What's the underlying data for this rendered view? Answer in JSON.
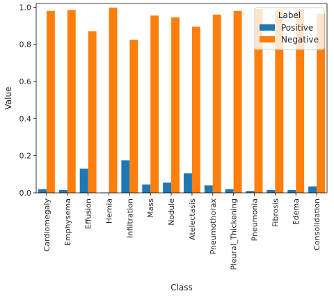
{
  "chart_data": {
    "type": "bar",
    "xlabel": "Class",
    "ylabel": "Value",
    "ylim": [
      0,
      1.02
    ],
    "yticks": [
      "0.0",
      "0.2",
      "0.4",
      "0.6",
      "0.8",
      "1.0"
    ],
    "grid": false,
    "legend": {
      "title": "Label",
      "placement": "top-right"
    },
    "categories": [
      "Cardiomegaly",
      "Emphysema",
      "Effusion",
      "Hernia",
      "Infiltration",
      "Mass",
      "Nodule",
      "Atelectasis",
      "Pneumothorax",
      "Pleural_Thickening",
      "Pneumonia",
      "Fibrosis",
      "Edema",
      "Consolidation"
    ],
    "series": [
      {
        "name": "Positive",
        "color": "#1f77b4",
        "values": [
          0.02,
          0.015,
          0.13,
          0.002,
          0.175,
          0.045,
          0.055,
          0.105,
          0.04,
          0.02,
          0.01,
          0.015,
          0.015,
          0.035
        ]
      },
      {
        "name": "Negative",
        "color": "#ff7f0e",
        "values": [
          0.98,
          0.985,
          0.87,
          0.998,
          0.825,
          0.955,
          0.945,
          0.895,
          0.96,
          0.98,
          0.99,
          0.985,
          0.985,
          0.965
        ]
      }
    ]
  }
}
